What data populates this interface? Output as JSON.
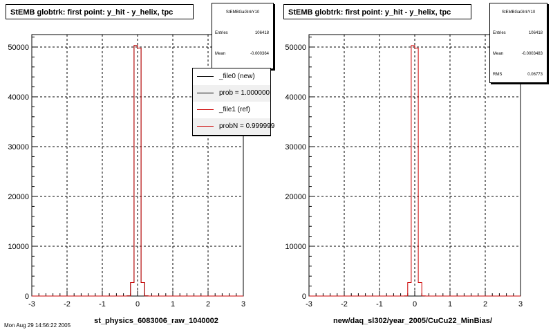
{
  "colors": {
    "ref": "#cc0000",
    "new": "#000000",
    "grid": "#000000",
    "panel_bg": "#ffffff"
  },
  "panels": [
    {
      "title": "StEMB globtrk: first point: y_hit - y_helix, tpc",
      "xtitle": "st_physics_6083006_raw_1040002",
      "stats": {
        "name": "StEMBGaGlrkY10",
        "rows": [
          {
            "key": "Entries",
            "value": "106418"
          },
          {
            "key": "Mean",
            "value": "-0.000364"
          }
        ]
      },
      "legend": [
        {
          "label": "_file0 (new)",
          "color": "#000000"
        },
        {
          "label": "prob = 1.000000",
          "color": "#000000"
        },
        {
          "label": "_file1 (ref)",
          "color": "#cc0000"
        },
        {
          "label": "probN = 0.999999",
          "color": "#cc0000"
        }
      ]
    },
    {
      "title": "StEMB globtrk: first point: y_hit - y_helix, tpc",
      "xtitle": "new/daq_sl302/year_2005/CuCu22_MinBias/",
      "stats": {
        "name": "StEMBGaGlrkY10",
        "rows": [
          {
            "key": "Entries",
            "value": "106418"
          },
          {
            "key": "Mean",
            "value": "-0.0003483"
          },
          {
            "key": "RMS",
            "value": "0.06773"
          }
        ]
      },
      "legend": []
    }
  ],
  "footer": "Mon Aug 29 14:56:22 2005",
  "chart_data": [
    {
      "type": "bar",
      "title": "StEMB globtrk: first point: y_hit - y_helix, tpc",
      "xlabel": "st_physics_6083006_raw_1040002",
      "ylabel": "",
      "xlim": [
        -3,
        3
      ],
      "ylim": [
        0,
        52500
      ],
      "xticks": [
        -3,
        -2,
        -1,
        0,
        1,
        2,
        3
      ],
      "yticks": [
        0,
        10000,
        20000,
        30000,
        40000,
        50000
      ],
      "grid": true,
      "bin_edges": [
        -3.0,
        -2.9,
        -2.8,
        -2.7,
        -2.6,
        -2.5,
        -2.4,
        -2.3,
        -2.2,
        -2.1,
        -2.0,
        -1.9,
        -1.8,
        -1.7,
        -1.6,
        -1.5,
        -1.4,
        -1.3,
        -1.2,
        -1.1,
        -1.0,
        -0.9,
        -0.8,
        -0.7,
        -0.6,
        -0.5,
        -0.4,
        -0.3,
        -0.2,
        -0.1,
        0.0,
        0.1,
        0.2,
        0.3,
        0.4,
        0.5,
        0.6,
        0.7,
        0.8,
        0.9,
        1.0,
        1.1,
        1.2,
        1.3,
        1.4,
        1.5,
        1.6,
        1.7,
        1.8,
        1.9,
        2.0,
        2.1,
        2.2,
        2.3,
        2.4,
        2.5,
        2.6,
        2.7,
        2.8,
        2.9,
        3.0
      ],
      "series": [
        {
          "name": "_file0 (new)",
          "values": [
            0,
            0,
            0,
            0,
            0,
            0,
            0,
            0,
            0,
            0,
            0,
            0,
            0,
            0,
            0,
            0,
            0,
            0,
            0,
            0,
            0,
            0,
            0,
            0,
            0,
            0,
            0,
            30,
            2700,
            50300,
            49800,
            2700,
            30,
            0,
            0,
            0,
            0,
            0,
            0,
            0,
            0,
            0,
            0,
            0,
            0,
            0,
            0,
            0,
            0,
            0,
            0,
            0,
            0,
            0,
            0,
            0,
            0,
            0,
            0,
            0
          ]
        },
        {
          "name": "_file1 (ref)",
          "values": [
            0,
            0,
            0,
            0,
            0,
            0,
            0,
            0,
            0,
            0,
            0,
            0,
            0,
            0,
            0,
            0,
            0,
            0,
            0,
            0,
            0,
            0,
            0,
            0,
            0,
            0,
            0,
            30,
            2700,
            50300,
            49800,
            2700,
            30,
            0,
            0,
            0,
            0,
            0,
            0,
            0,
            0,
            0,
            0,
            0,
            0,
            0,
            0,
            0,
            0,
            0,
            0,
            0,
            0,
            0,
            0,
            0,
            0,
            0,
            0,
            0
          ]
        }
      ],
      "legend_position": "top-right"
    },
    {
      "type": "bar",
      "title": "StEMB globtrk: first point: y_hit - y_helix, tpc",
      "xlabel": "new/daq_sl302/year_2005/CuCu22_MinBias/",
      "ylabel": "",
      "xlim": [
        -3,
        3
      ],
      "ylim": [
        0,
        52500
      ],
      "xticks": [
        -3,
        -2,
        -1,
        0,
        1,
        2,
        3
      ],
      "yticks": [
        0,
        10000,
        20000,
        30000,
        40000,
        50000
      ],
      "grid": true,
      "bin_edges": [
        -3.0,
        -2.9,
        -2.8,
        -2.7,
        -2.6,
        -2.5,
        -2.4,
        -2.3,
        -2.2,
        -2.1,
        -2.0,
        -1.9,
        -1.8,
        -1.7,
        -1.6,
        -1.5,
        -1.4,
        -1.3,
        -1.2,
        -1.1,
        -1.0,
        -0.9,
        -0.8,
        -0.7,
        -0.6,
        -0.5,
        -0.4,
        -0.3,
        -0.2,
        -0.1,
        0.0,
        0.1,
        0.2,
        0.3,
        0.4,
        0.5,
        0.6,
        0.7,
        0.8,
        0.9,
        1.0,
        1.1,
        1.2,
        1.3,
        1.4,
        1.5,
        1.6,
        1.7,
        1.8,
        1.9,
        2.0,
        2.1,
        2.2,
        2.3,
        2.4,
        2.5,
        2.6,
        2.7,
        2.8,
        2.9,
        3.0
      ],
      "series": [
        {
          "name": "",
          "values": [
            0,
            0,
            0,
            0,
            0,
            0,
            0,
            0,
            0,
            0,
            0,
            0,
            0,
            0,
            0,
            0,
            0,
            0,
            0,
            0,
            0,
            0,
            0,
            0,
            0,
            0,
            0,
            30,
            2700,
            50300,
            49800,
            2700,
            30,
            0,
            0,
            0,
            0,
            0,
            0,
            0,
            0,
            0,
            0,
            0,
            0,
            0,
            0,
            0,
            0,
            0,
            0,
            0,
            0,
            0,
            0,
            0,
            0,
            0,
            0,
            0
          ]
        }
      ]
    }
  ]
}
